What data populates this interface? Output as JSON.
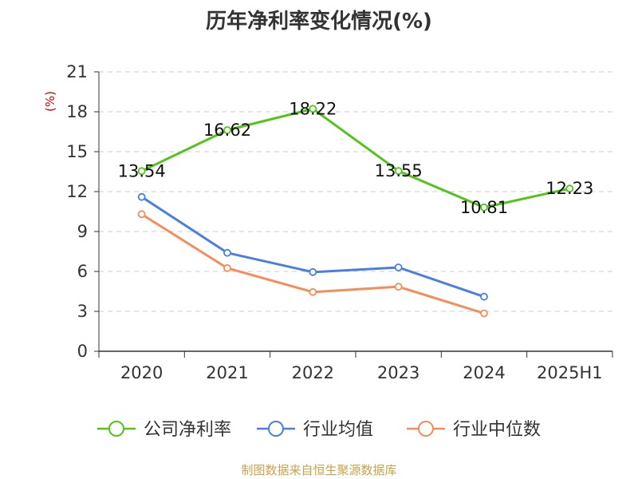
{
  "chart_data": {
    "type": "line",
    "title": "历年净利率变化情况(%)",
    "ylabel": "(%)",
    "xlabel": "",
    "categories": [
      "2020",
      "2021",
      "2022",
      "2023",
      "2024",
      "2025H1"
    ],
    "ylim": [
      0,
      21
    ],
    "yticks": [
      0,
      3,
      6,
      9,
      12,
      15,
      18,
      21
    ],
    "grid": true,
    "legend_position": "bottom",
    "series": [
      {
        "name": "公司净利率",
        "color": "#52c41a",
        "values": [
          13.54,
          16.62,
          18.22,
          13.55,
          10.81,
          12.23
        ],
        "labels": [
          "13.54",
          "16.62",
          "18.22",
          "13.55",
          "10.81",
          "12.23"
        ]
      },
      {
        "name": "行业均值",
        "color": "#4a7fe0",
        "values": [
          11.6,
          7.4,
          5.95,
          6.3,
          4.1,
          null
        ]
      },
      {
        "name": "行业中位数",
        "color": "#f58d5a",
        "values": [
          10.3,
          6.25,
          4.45,
          4.85,
          2.85,
          null
        ]
      }
    ]
  },
  "footer": {
    "source": "制图数据来自恒生聚源数据库"
  }
}
